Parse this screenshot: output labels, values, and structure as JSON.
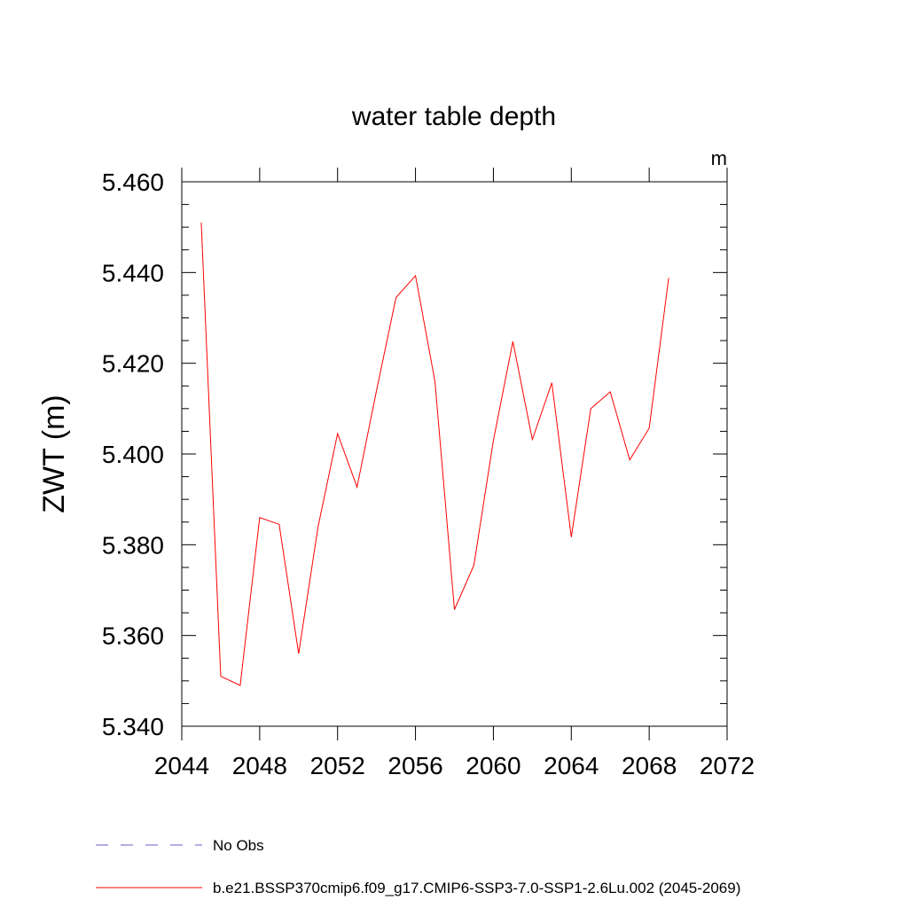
{
  "chart_data": {
    "type": "line",
    "title": "water table depth",
    "units": "m",
    "ylabel": "ZWT  (m)",
    "xlabel": "",
    "xlim": [
      2044,
      2072
    ],
    "ylim": [
      5.34,
      5.46
    ],
    "x_ticks": [
      2044,
      2048,
      2052,
      2056,
      2060,
      2064,
      2068,
      2072
    ],
    "x_tick_labels": [
      "2044",
      "2048",
      "2052",
      "2056",
      "2060",
      "2064",
      "2068",
      "2072"
    ],
    "y_ticks": [
      5.34,
      5.36,
      5.38,
      5.4,
      5.42,
      5.44,
      5.46
    ],
    "y_tick_labels": [
      "5.340",
      "5.360",
      "5.380",
      "5.400",
      "5.420",
      "5.440",
      "5.460"
    ],
    "grid": false,
    "legend_position": "bottom",
    "series": [
      {
        "name": "b.e21.BSSP370cmip6.f09_g17.CMIP6-SSP3-7.0-SSP1-2.6Lu.002 (2045-2069)",
        "color": "#ff0000",
        "x": [
          2045,
          2046,
          2047,
          2048,
          2049,
          2050,
          2051,
          2052,
          2053,
          2054,
          2055,
          2056,
          2057,
          2058,
          2059,
          2060,
          2061,
          2062,
          2063,
          2064,
          2065,
          2066,
          2067,
          2068,
          2069
        ],
        "y": [
          5.451,
          5.351,
          5.349,
          5.386,
          5.3845,
          5.356,
          5.384,
          5.4045,
          5.3927,
          5.414,
          5.4345,
          5.4393,
          5.416,
          5.3657,
          5.3755,
          5.403,
          5.4248,
          5.4032,
          5.4157,
          5.3817,
          5.41,
          5.4137,
          5.3987,
          5.4057,
          5.4388
        ]
      }
    ],
    "legend": [
      {
        "label": "No Obs",
        "color": "#6a5acd",
        "style": "dashed"
      },
      {
        "label": "b.e21.BSSP370cmip6.f09_g17.CMIP6-SSP3-7.0-SSP1-2.6Lu.002 (2045-2069)",
        "color": "#ff0000",
        "style": "solid"
      }
    ]
  }
}
